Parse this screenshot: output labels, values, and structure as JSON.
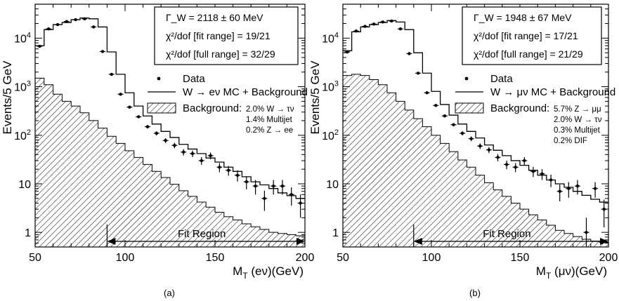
{
  "chart_data": [
    {
      "type": "histogram",
      "panel_label": "(a)",
      "xlabel": "M_T (eν)(GeV)",
      "xlabel_main": "M",
      "xlabel_sub": "T",
      "xlabel_rest": " (eν)(GeV)",
      "ylabel": "Events/5 GeV",
      "xlim": [
        50,
        200
      ],
      "ylim": [
        0.5,
        50000
      ],
      "yscale": "log",
      "x_ticks": [
        "50",
        "100",
        "150",
        "200"
      ],
      "y_ticks": [
        "1",
        "10",
        "10^2",
        "10^3",
        "10^4"
      ],
      "stats_lines": [
        "Γ_W  = 2118 ± 60 MeV",
        "χ²/dof [fit range]   = 19/21",
        "χ²/dof [full range] = 32/29"
      ],
      "legend": {
        "data": "Data",
        "mc": "W → eν MC + Background",
        "bkg": "Background:",
        "bkg_components": [
          "2.0% W → τν",
          "1.4% Multijet",
          "0.2% Z → ee"
        ]
      },
      "fit_region_label": "Fit Region",
      "fit_region": [
        90,
        200
      ],
      "bin_width": 5,
      "bin_edges_start": 50,
      "mc_values": [
        7000,
        15000,
        19000,
        21000,
        24000,
        26000,
        25000,
        17000,
        5200,
        1800,
        750,
        400,
        250,
        170,
        120,
        90,
        65,
        52,
        42,
        34,
        28,
        22,
        18,
        14,
        11,
        9.5,
        8,
        6.5,
        5.7,
        5
      ],
      "background_values": [
        1500,
        1100,
        700,
        500,
        400,
        290,
        200,
        140,
        95,
        68,
        48,
        35,
        25,
        18,
        13.5,
        9.8,
        7.2,
        5.5,
        4.2,
        3.3,
        2.6,
        2.1,
        1.8,
        1.5,
        1.3,
        1.15,
        1.0,
        0.95,
        0.9,
        0.85
      ],
      "data_points": [
        {
          "x": 52.5,
          "y": 6800
        },
        {
          "x": 57.5,
          "y": 15500
        },
        {
          "x": 62.5,
          "y": 19000
        },
        {
          "x": 67.5,
          "y": 22000
        },
        {
          "x": 72.5,
          "y": 24000
        },
        {
          "x": 77.5,
          "y": 25000
        },
        {
          "x": 82.5,
          "y": 17000
        },
        {
          "x": 87.5,
          "y": 5300
        },
        {
          "x": 92.5,
          "y": 1800
        },
        {
          "x": 97.5,
          "y": 700
        },
        {
          "x": 102.5,
          "y": 380
        },
        {
          "x": 107.5,
          "y": 240
        },
        {
          "x": 112.5,
          "y": 150
        },
        {
          "x": 117.5,
          "y": 110
        },
        {
          "x": 122.5,
          "y": 78
        },
        {
          "x": 127.5,
          "y": 62
        },
        {
          "x": 132.5,
          "y": 45
        },
        {
          "x": 137.5,
          "y": 42
        },
        {
          "x": 142.5,
          "y": 30
        },
        {
          "x": 147.5,
          "y": 38
        },
        {
          "x": 152.5,
          "y": 22
        },
        {
          "x": 157.5,
          "y": 19
        },
        {
          "x": 162.5,
          "y": 15
        },
        {
          "x": 167.5,
          "y": 11
        },
        {
          "x": 172.5,
          "y": 9
        },
        {
          "x": 177.5,
          "y": 5
        },
        {
          "x": 182.5,
          "y": 9
        },
        {
          "x": 187.5,
          "y": 9
        },
        {
          "x": 192.5,
          "y": 6
        },
        {
          "x": 197.5,
          "y": 4
        }
      ]
    },
    {
      "type": "histogram",
      "panel_label": "(b)",
      "xlabel": "M_T (μν)(GeV)",
      "xlabel_main": "M",
      "xlabel_sub": "T",
      "xlabel_rest": " (μν)(GeV)",
      "ylabel": "Events/5 GeV",
      "xlim": [
        50,
        200
      ],
      "ylim": [
        0.5,
        50000
      ],
      "yscale": "log",
      "x_ticks": [
        "50",
        "100",
        "150",
        "200"
      ],
      "y_ticks": [
        "1",
        "10",
        "10^2",
        "10^3",
        "10^4"
      ],
      "stats_lines": [
        "Γ_W  = 1948 ± 67 MeV",
        "χ²/dof [fit range]   = 17/21",
        "χ²/dof [full range] = 21/29"
      ],
      "legend": {
        "data": "Data",
        "mc": "W → μν MC + Background",
        "bkg": "Background:",
        "bkg_components": [
          "5.7% Z → μμ",
          "2.0% W → τν",
          "0.3% Multijet",
          "0.2% DIF"
        ]
      },
      "fit_region_label": "Fit Region",
      "fit_region": [
        90,
        200
      ],
      "bin_width": 5,
      "bin_edges_start": 50,
      "mc_values": [
        5500,
        13500,
        17000,
        19000,
        21000,
        23000,
        21500,
        15000,
        5000,
        1900,
        800,
        430,
        260,
        170,
        120,
        88,
        63,
        49,
        38,
        30,
        24,
        19,
        15,
        12,
        10,
        8.5,
        7,
        5.8,
        4.8,
        4.2
      ],
      "background_values": [
        1700,
        1800,
        1700,
        1400,
        1100,
        750,
        500,
        330,
        220,
        150,
        100,
        68,
        46,
        31,
        22,
        15,
        10.5,
        7.5,
        5.5,
        4,
        3,
        2.3,
        1.8,
        1.4,
        1.1,
        0.95,
        0.82,
        0.72,
        0.66,
        0.62
      ],
      "data_points": [
        {
          "x": 52.5,
          "y": 5200
        },
        {
          "x": 57.5,
          "y": 14000
        },
        {
          "x": 62.5,
          "y": 17500
        },
        {
          "x": 67.5,
          "y": 19500
        },
        {
          "x": 72.5,
          "y": 21500
        },
        {
          "x": 77.5,
          "y": 22500
        },
        {
          "x": 82.5,
          "y": 15500
        },
        {
          "x": 87.5,
          "y": 4800
        },
        {
          "x": 92.5,
          "y": 1900
        },
        {
          "x": 97.5,
          "y": 750
        },
        {
          "x": 102.5,
          "y": 410
        },
        {
          "x": 107.5,
          "y": 250
        },
        {
          "x": 112.5,
          "y": 165
        },
        {
          "x": 117.5,
          "y": 110
        },
        {
          "x": 122.5,
          "y": 85
        },
        {
          "x": 127.5,
          "y": 60
        },
        {
          "x": 132.5,
          "y": 50
        },
        {
          "x": 137.5,
          "y": 35
        },
        {
          "x": 142.5,
          "y": 25
        },
        {
          "x": 147.5,
          "y": 22
        },
        {
          "x": 152.5,
          "y": 30
        },
        {
          "x": 157.5,
          "y": 18
        },
        {
          "x": 162.5,
          "y": 16
        },
        {
          "x": 167.5,
          "y": 12
        },
        {
          "x": 172.5,
          "y": 7
        },
        {
          "x": 177.5,
          "y": 8
        },
        {
          "x": 182.5,
          "y": 9
        },
        {
          "x": 187.5,
          "y": 1
        },
        {
          "x": 192.5,
          "y": 8
        },
        {
          "x": 197.5,
          "y": 3
        }
      ]
    }
  ]
}
